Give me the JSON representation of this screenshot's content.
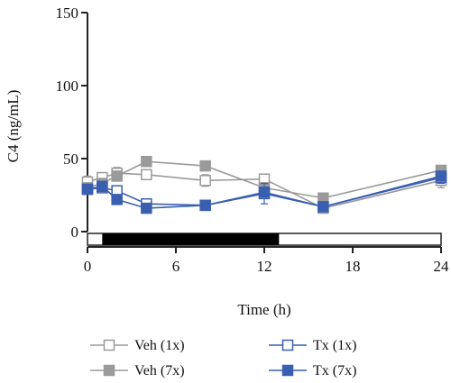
{
  "chart_data": {
    "type": "line",
    "title": "",
    "xlabel": "Time (h)",
    "ylabel": "C4 (ng/mL)",
    "xlim": [
      0,
      24
    ],
    "ylim": [
      0,
      150
    ],
    "x_ticks": [
      "0",
      "6",
      "12",
      "18",
      "24"
    ],
    "y_ticks": [
      "0",
      "50",
      "100",
      "150"
    ],
    "grid": false,
    "legend_position": "bottom",
    "light_dark_bar": {
      "dark_start": 1,
      "dark_end": 13
    },
    "series": [
      {
        "name": "Veh (1x)",
        "color": "#9a9a9a",
        "marker": "open-square",
        "points": [
          {
            "x": 0,
            "y": 34,
            "err": 4
          },
          {
            "x": 1,
            "y": 37,
            "err": 3
          },
          {
            "x": 2,
            "y": 40,
            "err": 4
          },
          {
            "x": 4,
            "y": 39,
            "err": 3
          },
          {
            "x": 8,
            "y": 35,
            "err": 4
          },
          {
            "x": 12,
            "y": 36,
            "err": 3
          },
          {
            "x": 16,
            "y": 16,
            "err": 3
          },
          {
            "x": 24,
            "y": 35,
            "err": 5
          }
        ]
      },
      {
        "name": "Veh (7x)",
        "color": "#9a9a9a",
        "marker": "filled-square",
        "points": [
          {
            "x": 0,
            "y": 30,
            "err": 3
          },
          {
            "x": 1,
            "y": 33,
            "err": 3
          },
          {
            "x": 2,
            "y": 38,
            "err": 3
          },
          {
            "x": 4,
            "y": 48,
            "err": 3
          },
          {
            "x": 8,
            "y": 45,
            "err": 2
          },
          {
            "x": 12,
            "y": 30,
            "err": 3
          },
          {
            "x": 16,
            "y": 23,
            "err": 3
          },
          {
            "x": 24,
            "y": 42,
            "err": 3
          }
        ]
      },
      {
        "name": "Tx (1x)",
        "color": "#3a5fb0",
        "marker": "open-square",
        "points": [
          {
            "x": 0,
            "y": 29,
            "err": 3
          },
          {
            "x": 1,
            "y": 30,
            "err": 3
          },
          {
            "x": 2,
            "y": 28,
            "err": 3
          },
          {
            "x": 4,
            "y": 19,
            "err": 2
          },
          {
            "x": 8,
            "y": 18,
            "err": 2
          },
          {
            "x": 12,
            "y": 26,
            "err": 7
          },
          {
            "x": 16,
            "y": 17,
            "err": 2
          },
          {
            "x": 24,
            "y": 37,
            "err": 4
          }
        ]
      },
      {
        "name": "Tx (7x)",
        "color": "#3a5fb0",
        "marker": "filled-square",
        "points": [
          {
            "x": 0,
            "y": 29,
            "err": 2
          },
          {
            "x": 1,
            "y": 31,
            "err": 2
          },
          {
            "x": 2,
            "y": 22,
            "err": 2
          },
          {
            "x": 4,
            "y": 16,
            "err": 2
          },
          {
            "x": 8,
            "y": 18,
            "err": 2
          },
          {
            "x": 12,
            "y": 27,
            "err": 3
          },
          {
            "x": 16,
            "y": 17,
            "err": 2
          },
          {
            "x": 24,
            "y": 38,
            "err": 3
          }
        ]
      }
    ]
  }
}
